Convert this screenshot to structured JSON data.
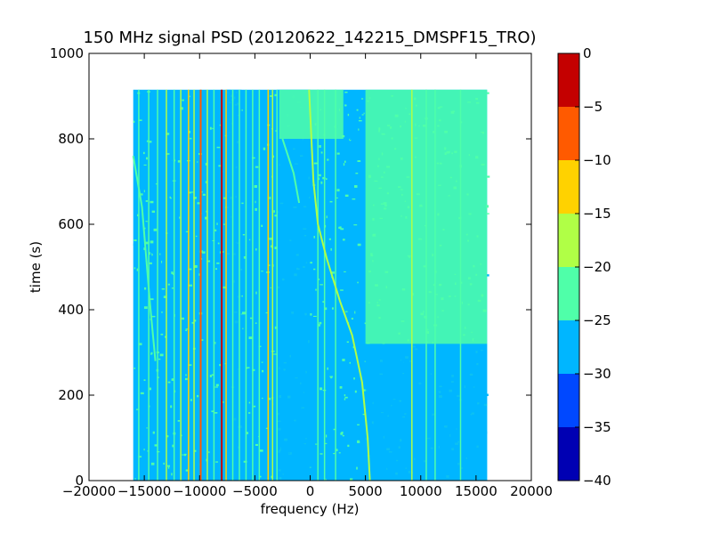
{
  "chart_data": {
    "type": "heatmap",
    "title": "150 MHz signal PSD (20120622_142215_DMSPF15_TRO)",
    "xlabel": "frequency (Hz)",
    "ylabel": "time (s)",
    "xlim": [
      -20000,
      20000
    ],
    "ylim": [
      0,
      1000
    ],
    "xticks": [
      -20000,
      -15000,
      -10000,
      -5000,
      0,
      5000,
      10000,
      15000,
      20000
    ],
    "yticks": [
      0,
      200,
      400,
      600,
      800,
      1000
    ],
    "data_extent": {
      "freq": [
        -16000,
        16000
      ],
      "time": [
        0,
        915
      ]
    },
    "background_level_band": [
      -30,
      -25
    ],
    "colorbar": {
      "min": -40,
      "max": 0,
      "ticks": [
        0,
        -5,
        -10,
        -15,
        -20,
        -25,
        -30,
        -35,
        -40
      ],
      "bands": [
        {
          "from": -40,
          "to": -35,
          "color": "#0000b3"
        },
        {
          "from": -35,
          "to": -30,
          "color": "#0048ff"
        },
        {
          "from": -30,
          "to": -25,
          "color": "#00b6ff"
        },
        {
          "from": -25,
          "to": -20,
          "color": "#4fffa9"
        },
        {
          "from": -20,
          "to": -15,
          "color": "#b0ff46"
        },
        {
          "from": -15,
          "to": -10,
          "color": "#ffd200"
        },
        {
          "from": -10,
          "to": -5,
          "color": "#ff5a00"
        },
        {
          "from": -5,
          "to": 0,
          "color": "#c40000"
        }
      ]
    },
    "vertical_lines": [
      {
        "freq": -15500,
        "level": -22
      },
      {
        "freq": -14600,
        "level": -22
      },
      {
        "freq": -13800,
        "level": -22
      },
      {
        "freq": -13000,
        "level": -17
      },
      {
        "freq": -12300,
        "level": -22
      },
      {
        "freq": -11700,
        "level": -17
      },
      {
        "freq": -11000,
        "level": -12
      },
      {
        "freq": -10500,
        "level": -17
      },
      {
        "freq": -9900,
        "level": -7
      },
      {
        "freq": -9300,
        "level": -17
      },
      {
        "freq": -8700,
        "level": -22
      },
      {
        "freq": -8000,
        "level": -2
      },
      {
        "freq": -7600,
        "level": -12
      },
      {
        "freq": -7000,
        "level": -22
      },
      {
        "freq": -6400,
        "level": -22
      },
      {
        "freq": -5800,
        "level": -22
      },
      {
        "freq": -5200,
        "level": -22
      },
      {
        "freq": -4600,
        "level": -22
      },
      {
        "freq": -3800,
        "level": -12
      },
      {
        "freq": -3400,
        "level": -17
      },
      {
        "freq": -3000,
        "level": -22
      },
      {
        "freq": 700,
        "level": -22
      },
      {
        "freq": 1300,
        "level": -22
      },
      {
        "freq": 2300,
        "level": -22
      },
      {
        "freq": 9200,
        "level": -17
      },
      {
        "freq": 10500,
        "level": -22
      },
      {
        "freq": 11300,
        "level": -22
      },
      {
        "freq": 13600,
        "level": -22
      }
    ],
    "drifting_tracks": [
      {
        "level": -17,
        "points": [
          [
            -100,
            915
          ],
          [
            300,
            700
          ],
          [
            700,
            600
          ],
          [
            1500,
            520
          ],
          [
            2700,
            420
          ],
          [
            3800,
            340
          ],
          [
            4700,
            230
          ],
          [
            5200,
            100
          ],
          [
            5400,
            0
          ]
        ]
      },
      {
        "level": -22,
        "points": [
          [
            -16000,
            760
          ],
          [
            -15200,
            640
          ],
          [
            -14500,
            420
          ],
          [
            -14000,
            280
          ]
        ]
      },
      {
        "level": -22,
        "points": [
          [
            -2500,
            800
          ],
          [
            -1500,
            720
          ],
          [
            -1000,
            650
          ]
        ]
      }
    ],
    "patches": [
      {
        "freq": [
          -3000,
          0
        ],
        "time": [
          0,
          915
        ],
        "level": -27
      },
      {
        "freq": [
          -7600,
          -6200
        ],
        "time": [
          0,
          915
        ],
        "level": -27
      },
      {
        "freq": [
          -2800,
          3000
        ],
        "time": [
          800,
          915
        ],
        "level": -22
      },
      {
        "freq": [
          5000,
          16000
        ],
        "time": [
          320,
          915
        ],
        "level": -22
      },
      {
        "freq": [
          5000,
          16000
        ],
        "time": [
          0,
          320
        ],
        "level": -27
      }
    ]
  }
}
